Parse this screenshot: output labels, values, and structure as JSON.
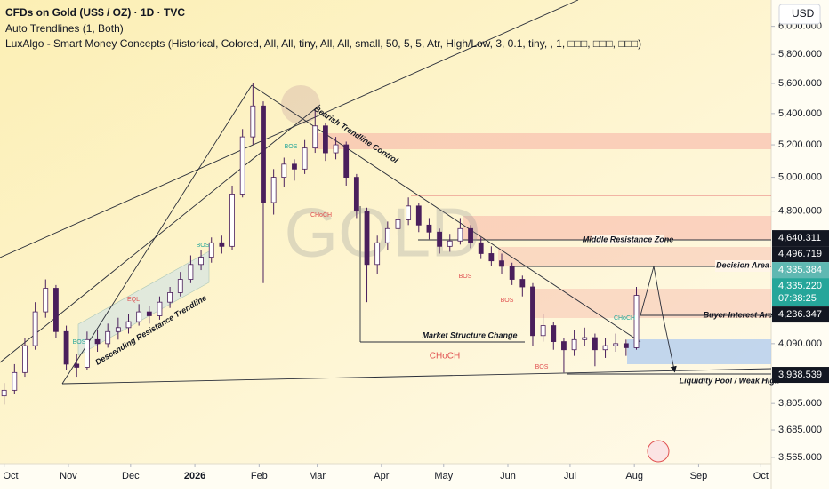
{
  "chart_data": {
    "type": "candlestick",
    "title": "CFDs on Gold (US$ / OZ) · 1D · TVC",
    "indicators": [
      "Auto Trendlines (1, Both)",
      "LuxAlgo - Smart Money Concepts (Historical, Colored, All, All, tiny, All, All, small, 50, 5, 5, Atr, High/Low, 3, 0.1, tiny, , 1, □□□, □□□, □□□)"
    ],
    "watermark": "GOLD",
    "currency": "USD",
    "log_scale": true,
    "up_color": "#ffffff",
    "down_color": "#4a1f5c",
    "edge_color": "#4a1f5c",
    "x": [
      0,
      5,
      10,
      15,
      20,
      25,
      30,
      35,
      40,
      45,
      50,
      55,
      60,
      65,
      70,
      75,
      80,
      85,
      90,
      95,
      100,
      105,
      110,
      115,
      120,
      125,
      130,
      135,
      140,
      145,
      150,
      155,
      160,
      165,
      170,
      175,
      180,
      185,
      190,
      195,
      200,
      205,
      210,
      215,
      220,
      225,
      230,
      235,
      240,
      245,
      250,
      255,
      260,
      265,
      270,
      275,
      280,
      285,
      290,
      295,
      300,
      305
    ],
    "ohlc": [
      [
        3840,
        3900,
        3800,
        3866
      ],
      [
        3866,
        3990,
        3850,
        3950
      ],
      [
        3950,
        4120,
        3930,
        4080
      ],
      [
        4080,
        4300,
        4060,
        4250
      ],
      [
        4250,
        4420,
        4220,
        4373
      ],
      [
        4373,
        4390,
        4120,
        4150
      ],
      [
        4150,
        4180,
        3960,
        3990
      ],
      [
        3990,
        4040,
        3930,
        3975
      ],
      [
        3975,
        4150,
        3960,
        4110
      ],
      [
        4110,
        4160,
        4050,
        4090
      ],
      [
        4090,
        4190,
        4070,
        4150
      ],
      [
        4150,
        4220,
        4110,
        4170
      ],
      [
        4170,
        4240,
        4140,
        4200
      ],
      [
        4200,
        4290,
        4180,
        4250
      ],
      [
        4250,
        4280,
        4190,
        4230
      ],
      [
        4230,
        4330,
        4210,
        4300
      ],
      [
        4300,
        4380,
        4270,
        4350
      ],
      [
        4350,
        4460,
        4330,
        4420
      ],
      [
        4420,
        4550,
        4400,
        4500
      ],
      [
        4500,
        4580,
        4470,
        4540
      ],
      [
        4540,
        4650,
        4510,
        4620
      ],
      [
        4620,
        4660,
        4560,
        4600
      ],
      [
        4600,
        4950,
        4580,
        4900
      ],
      [
        4900,
        5300,
        4880,
        5250
      ],
      [
        5250,
        5600,
        5200,
        5450
      ],
      [
        5450,
        5480,
        4400,
        4850
      ],
      [
        4850,
        5050,
        4780,
        5000
      ],
      [
        5000,
        5120,
        4940,
        5080
      ],
      [
        5080,
        5110,
        4980,
        5050
      ],
      [
        5050,
        5230,
        5020,
        5180
      ],
      [
        5180,
        5420,
        5150,
        5320
      ],
      [
        5320,
        5340,
        5100,
        5150
      ],
      [
        5150,
        5250,
        5110,
        5200
      ],
      [
        5200,
        5220,
        4950,
        5000
      ],
      [
        5000,
        5020,
        4760,
        4800
      ],
      [
        4800,
        4820,
        4300,
        4500
      ],
      [
        4500,
        4660,
        4450,
        4620
      ],
      [
        4620,
        4740,
        4580,
        4700
      ],
      [
        4700,
        4800,
        4660,
        4750
      ],
      [
        4750,
        4880,
        4720,
        4830
      ],
      [
        4830,
        4850,
        4680,
        4720
      ],
      [
        4720,
        4760,
        4640,
        4680
      ],
      [
        4680,
        4700,
        4560,
        4600
      ],
      [
        4600,
        4670,
        4570,
        4630
      ],
      [
        4630,
        4760,
        4610,
        4700
      ],
      [
        4700,
        4720,
        4590,
        4620
      ],
      [
        4620,
        4650,
        4530,
        4560
      ],
      [
        4560,
        4600,
        4490,
        4520
      ],
      [
        4520,
        4560,
        4450,
        4490
      ],
      [
        4490,
        4510,
        4390,
        4420
      ],
      [
        4420,
        4440,
        4330,
        4380
      ],
      [
        4380,
        4400,
        4080,
        4130
      ],
      [
        4130,
        4240,
        4100,
        4180
      ],
      [
        4180,
        4200,
        4060,
        4100
      ],
      [
        4100,
        4120,
        3950,
        4060
      ],
      [
        4060,
        4160,
        4030,
        4110
      ],
      [
        4110,
        4170,
        4080,
        4120
      ],
      [
        4120,
        4140,
        3980,
        4060
      ],
      [
        4060,
        4120,
        4020,
        4080
      ],
      [
        4080,
        4140,
        4050,
        4090
      ],
      [
        4090,
        4110,
        4030,
        4070
      ],
      [
        4070,
        4380,
        4060,
        4335.22
      ]
    ],
    "xlim": [
      -2,
      370
    ],
    "ylim": [
      3538,
      6194
    ],
    "xticks": [
      {
        "value": 0,
        "label": "Oct"
      },
      {
        "value": 31,
        "label": "Nov"
      },
      {
        "value": 61,
        "label": "Dec"
      },
      {
        "value": 92,
        "label": "2026"
      },
      {
        "value": 123,
        "label": "Feb"
      },
      {
        "value": 151,
        "label": "Mar"
      },
      {
        "value": 182,
        "label": "Apr"
      },
      {
        "value": 212,
        "label": "May"
      },
      {
        "value": 243,
        "label": "Jun"
      },
      {
        "value": 273,
        "label": "Jul"
      },
      {
        "value": 304,
        "label": "Aug"
      },
      {
        "value": 335,
        "label": "Sep"
      },
      {
        "value": 365,
        "label": "Oct"
      }
    ],
    "yticks": [
      {
        "value": 6000,
        "label": "6,000.000"
      },
      {
        "value": 5800,
        "label": "5,800.000"
      },
      {
        "value": 5600,
        "label": "5,600.000"
      },
      {
        "value": 5400,
        "label": "5,400.000"
      },
      {
        "value": 5200,
        "label": "5,200.000"
      },
      {
        "value": 5000,
        "label": "5,000.000"
      },
      {
        "value": 4800,
        "label": "4,800.000"
      },
      {
        "value": 4090,
        "label": "4,090.000"
      },
      {
        "value": 3805,
        "label": "3,805.000"
      },
      {
        "value": 3685,
        "label": "3,685.000"
      },
      {
        "value": 3565,
        "label": "3,565.000"
      }
    ],
    "price_labels": [
      {
        "value": 4640.311,
        "label": "4,640.311",
        "color": "#131722"
      },
      {
        "value": 4496.719,
        "label": "4,496.719",
        "color": "#131722"
      },
      {
        "value": 4335.384,
        "label": "4,335.384",
        "color": "#5fb8b2"
      },
      {
        "value": 4335.22,
        "label": "4,335.220",
        "color": "#26a69a"
      },
      {
        "value": 4236.347,
        "label": "4,236.347",
        "color": "#131722"
      },
      {
        "value": 3938.539,
        "label": "3,938.539",
        "color": "#131722"
      }
    ],
    "countdown": "07:38:25",
    "annotations": {
      "bearish": "Bearish Trendline Control",
      "descending": "Descending Resistance Trendline",
      "market_structure": "Market Structure Change",
      "middle_zone": "Middle Resistance Zone",
      "decision": "Decision Area",
      "buyer": "Buyer Interest Area",
      "liquidity": "Liquidity Pool / Weak High"
    },
    "structure_labels": [
      "BOS",
      "BOS",
      "BOS",
      "EQL",
      "CHoCH",
      "BOS",
      "BOS",
      "CHoCH",
      "CHoCH",
      "BOS"
    ]
  }
}
